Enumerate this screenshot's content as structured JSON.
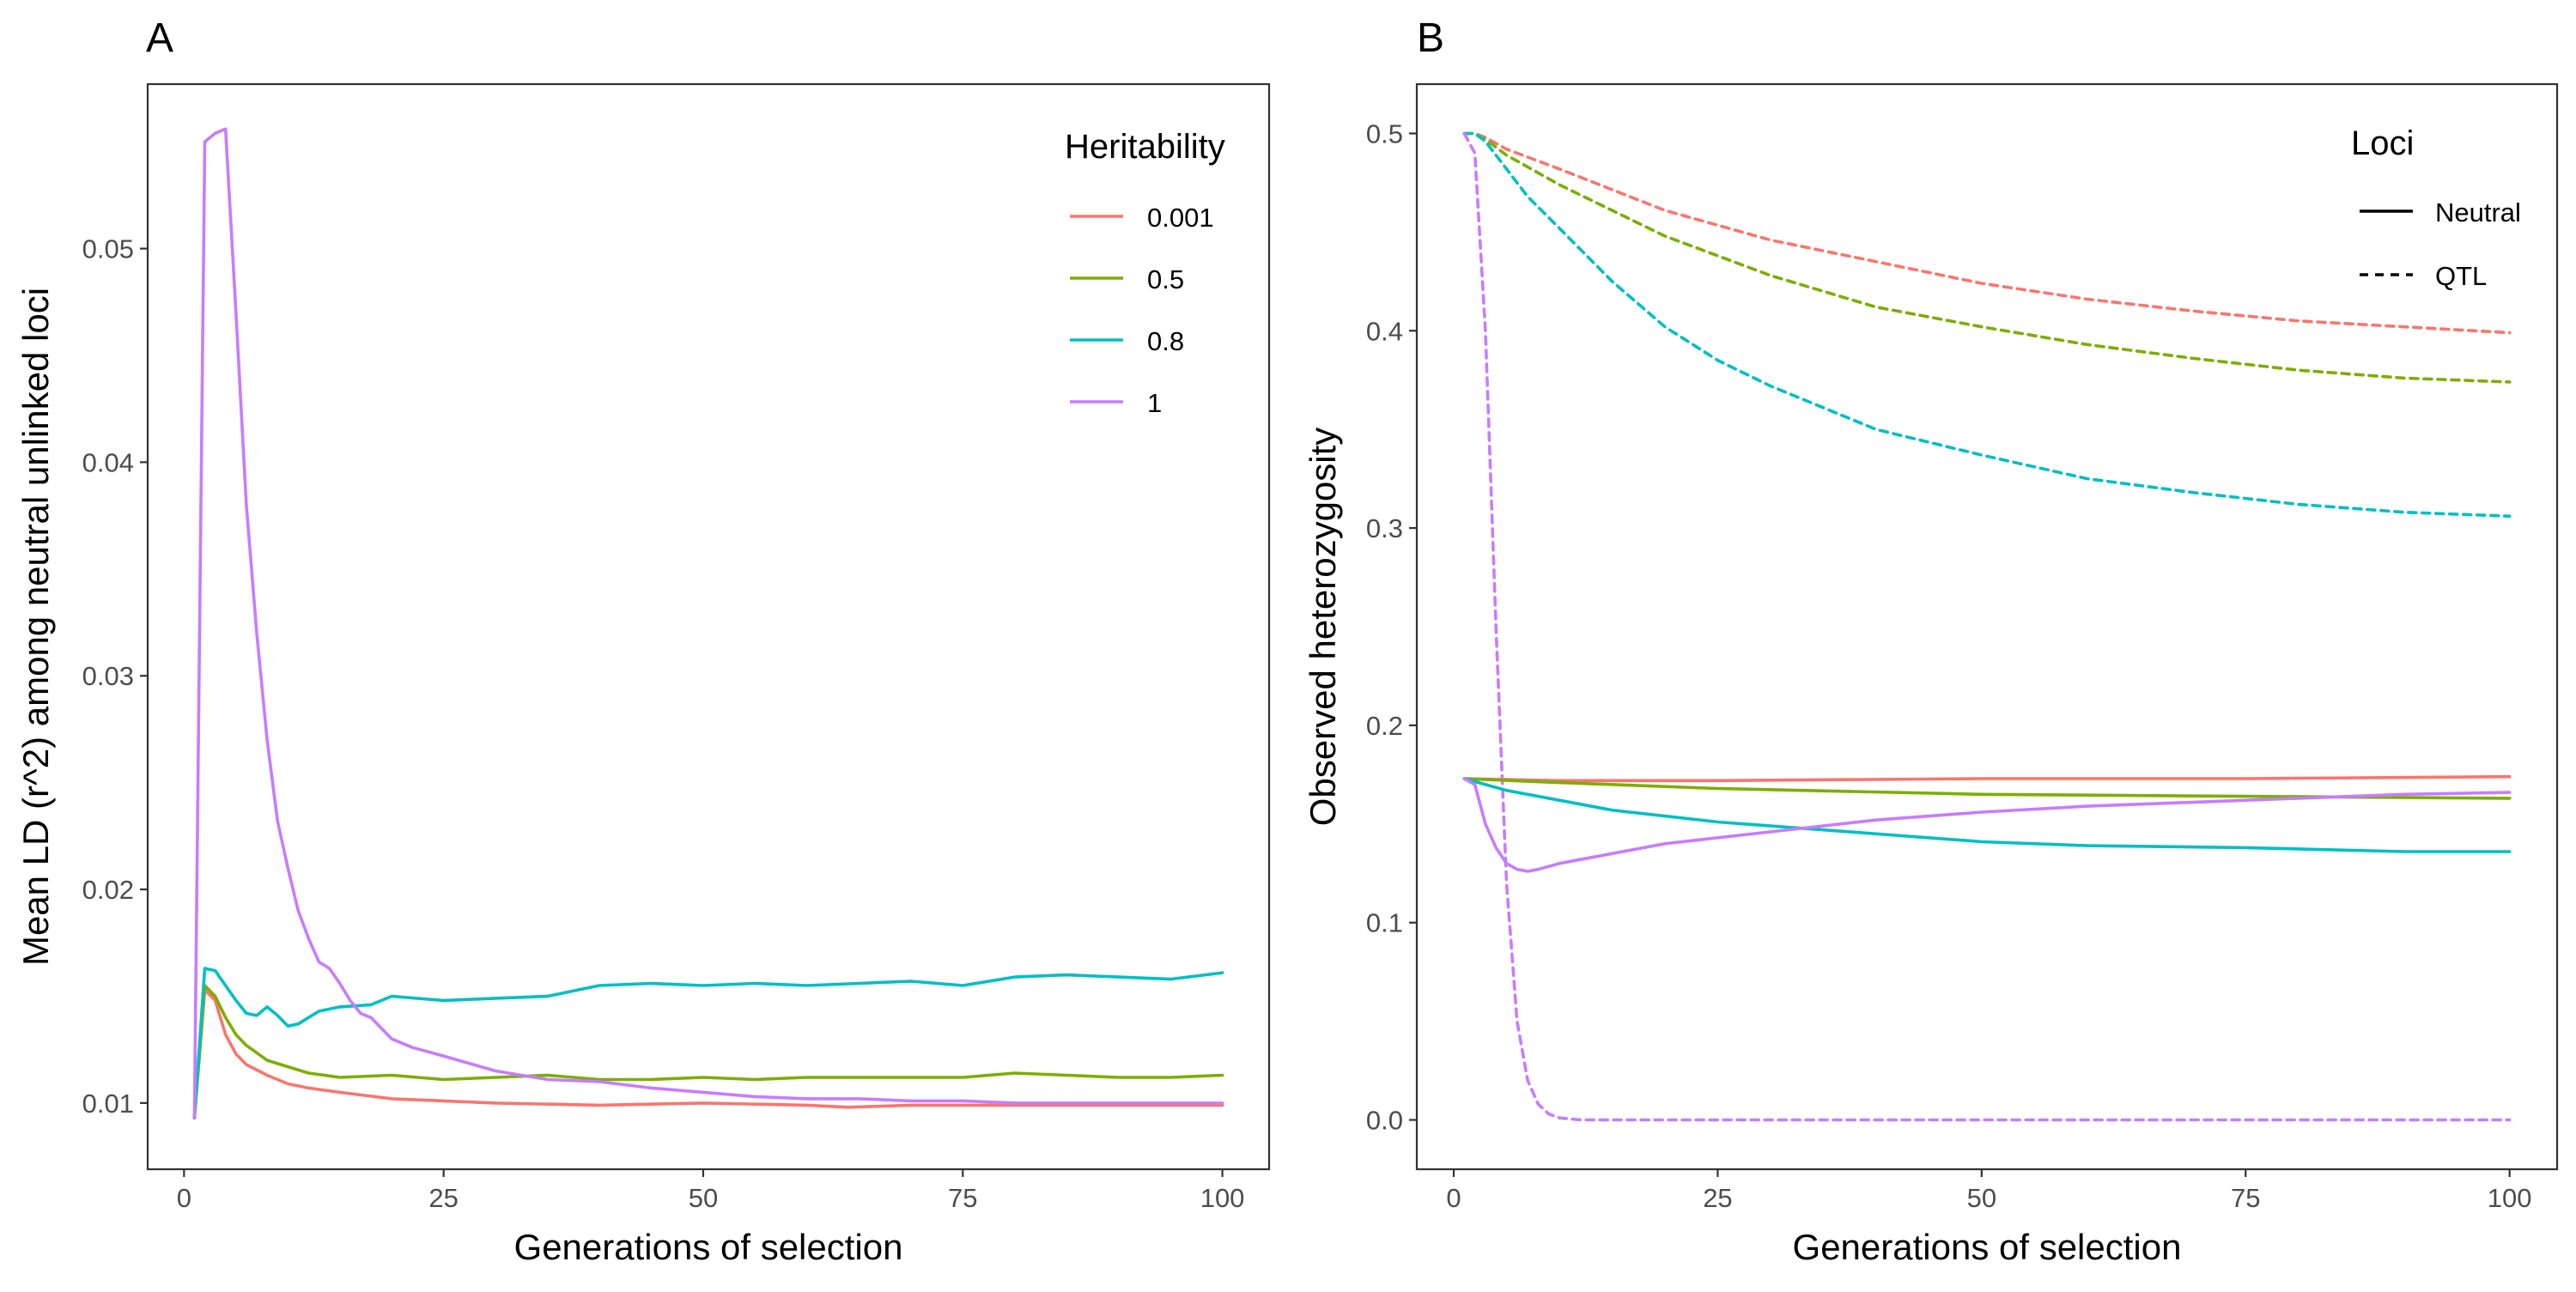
{
  "chart_data": [
    {
      "type": "line",
      "panel_label": "A",
      "xlabel": "Generations of selection",
      "ylabel": "Mean LD (r^2) among neutral unlinked loci",
      "xlim": [
        -3.5,
        104.5
      ],
      "ylim": [
        0.0069,
        0.0577
      ],
      "xticks": [
        0,
        25,
        50,
        75,
        100
      ],
      "yticks": [
        0.01,
        0.02,
        0.03,
        0.04,
        0.05
      ],
      "xtick_labels": [
        "0",
        "25",
        "50",
        "75",
        "100"
      ],
      "ytick_labels": [
        "0.01",
        "0.02",
        "0.03",
        "0.04",
        "0.05"
      ],
      "grid": false,
      "legend": {
        "title": "Heritability",
        "position": "top-right"
      },
      "series": [
        {
          "name": "0.001",
          "color": "#F8766D",
          "style": "solid",
          "x": [
            1,
            2,
            3,
            4,
            5,
            6,
            8,
            10,
            12,
            15,
            20,
            25,
            30,
            40,
            50,
            60,
            64,
            70,
            75,
            80,
            90,
            100
          ],
          "y": [
            0.0093,
            0.0153,
            0.0148,
            0.0132,
            0.0123,
            0.0118,
            0.0113,
            0.0109,
            0.0107,
            0.0105,
            0.0102,
            0.0101,
            0.01,
            0.0099,
            0.01,
            0.0099,
            0.0098,
            0.0099,
            0.0099,
            0.0099,
            0.0099,
            0.0099
          ]
        },
        {
          "name": "0.5",
          "color": "#7CAE00",
          "style": "solid",
          "x": [
            1,
            2,
            3,
            4,
            5,
            6,
            8,
            10,
            12,
            15,
            20,
            25,
            30,
            35,
            40,
            45,
            50,
            55,
            60,
            65,
            70,
            75,
            80,
            85,
            90,
            95,
            100
          ],
          "y": [
            0.0093,
            0.0155,
            0.015,
            0.014,
            0.0132,
            0.0127,
            0.012,
            0.0117,
            0.0114,
            0.0112,
            0.0113,
            0.0111,
            0.0112,
            0.0113,
            0.0111,
            0.0111,
            0.0112,
            0.0111,
            0.0112,
            0.0112,
            0.0112,
            0.0112,
            0.0114,
            0.0113,
            0.0112,
            0.0112,
            0.0113
          ]
        },
        {
          "name": "0.8",
          "color": "#00BFC4",
          "style": "solid",
          "x": [
            1,
            2,
            3,
            4,
            5,
            6,
            7,
            8,
            9,
            10,
            11,
            12,
            13,
            15,
            18,
            20,
            25,
            30,
            35,
            40,
            45,
            50,
            55,
            60,
            65,
            70,
            75,
            80,
            85,
            90,
            95,
            100
          ],
          "y": [
            0.0093,
            0.0163,
            0.0162,
            0.0155,
            0.0148,
            0.0142,
            0.0141,
            0.0145,
            0.0141,
            0.0136,
            0.0137,
            0.014,
            0.0143,
            0.0145,
            0.0146,
            0.015,
            0.0148,
            0.0149,
            0.015,
            0.0155,
            0.0156,
            0.0155,
            0.0156,
            0.0155,
            0.0156,
            0.0157,
            0.0155,
            0.0159,
            0.016,
            0.0159,
            0.0158,
            0.0161
          ]
        },
        {
          "name": "1",
          "color": "#C77CFF",
          "style": "solid",
          "x": [
            1,
            2,
            3,
            4,
            5,
            6,
            7,
            8,
            9,
            10,
            11,
            12,
            13,
            14,
            15,
            16,
            17,
            18,
            20,
            22,
            25,
            30,
            35,
            40,
            45,
            50,
            55,
            60,
            65,
            70,
            75,
            80,
            90,
            100
          ],
          "y": [
            0.0093,
            0.055,
            0.0554,
            0.0556,
            0.047,
            0.038,
            0.032,
            0.027,
            0.0232,
            0.021,
            0.019,
            0.0177,
            0.0166,
            0.0163,
            0.0156,
            0.0148,
            0.0142,
            0.014,
            0.013,
            0.0126,
            0.0122,
            0.0115,
            0.0111,
            0.011,
            0.0107,
            0.0105,
            0.0103,
            0.0102,
            0.0102,
            0.0101,
            0.0101,
            0.01,
            0.01,
            0.01
          ]
        }
      ]
    },
    {
      "type": "line",
      "panel_label": "B",
      "xlabel": "Generations of selection",
      "ylabel": "Observed heterozygosity",
      "xlim": [
        -3.5,
        104.5
      ],
      "ylim": [
        -0.025,
        0.525
      ],
      "xticks": [
        0,
        25,
        50,
        75,
        100
      ],
      "yticks": [
        0.0,
        0.1,
        0.2,
        0.3,
        0.4,
        0.5
      ],
      "xtick_labels": [
        "0",
        "25",
        "50",
        "75",
        "100"
      ],
      "ytick_labels": [
        "0.0",
        "0.1",
        "0.2",
        "0.3",
        "0.4",
        "0.5"
      ],
      "grid": false,
      "legend": {
        "title": "Loci",
        "position": "top-right",
        "entries": [
          {
            "label": "Neutral",
            "style": "solid"
          },
          {
            "label": "QTL",
            "style": "dashed"
          }
        ]
      },
      "series": [
        {
          "heritability": "0.001",
          "loci": "QTL",
          "color": "#F8766D",
          "style": "dashed",
          "x": [
            1,
            2,
            3,
            5,
            10,
            20,
            30,
            40,
            50,
            60,
            70,
            80,
            90,
            100
          ],
          "y": [
            0.5,
            0.5,
            0.498,
            0.492,
            0.482,
            0.461,
            0.446,
            0.435,
            0.424,
            0.416,
            0.41,
            0.405,
            0.402,
            0.399
          ]
        },
        {
          "heritability": "0.5",
          "loci": "QTL",
          "color": "#7CAE00",
          "style": "dashed",
          "x": [
            1,
            2,
            3,
            5,
            10,
            20,
            30,
            40,
            50,
            60,
            70,
            80,
            90,
            100
          ],
          "y": [
            0.5,
            0.5,
            0.497,
            0.489,
            0.474,
            0.448,
            0.428,
            0.412,
            0.402,
            0.393,
            0.386,
            0.38,
            0.376,
            0.374
          ]
        },
        {
          "heritability": "0.8",
          "loci": "QTL",
          "color": "#00BFC4",
          "style": "dashed",
          "x": [
            1,
            2,
            3,
            5,
            7,
            10,
            15,
            20,
            25,
            30,
            40,
            50,
            60,
            70,
            80,
            90,
            100
          ],
          "y": [
            0.5,
            0.5,
            0.496,
            0.482,
            0.468,
            0.452,
            0.425,
            0.402,
            0.385,
            0.372,
            0.35,
            0.337,
            0.325,
            0.318,
            0.312,
            0.308,
            0.306
          ]
        },
        {
          "heritability": "1",
          "loci": "QTL",
          "color": "#C77CFF",
          "style": "dashed",
          "x": [
            1,
            2,
            3,
            4,
            5,
            6,
            7,
            8,
            9,
            10,
            12,
            15,
            20,
            40,
            60,
            80,
            100
          ],
          "y": [
            0.5,
            0.49,
            0.4,
            0.25,
            0.12,
            0.05,
            0.02,
            0.008,
            0.003,
            0.001,
            0.0,
            0.0,
            0.0,
            0.0,
            0.0,
            0.0,
            0.0
          ]
        },
        {
          "heritability": "0.001",
          "loci": "Neutral",
          "color": "#F8766D",
          "style": "solid",
          "x": [
            1,
            10,
            25,
            50,
            75,
            100
          ],
          "y": [
            0.173,
            0.172,
            0.172,
            0.173,
            0.173,
            0.174
          ]
        },
        {
          "heritability": "0.5",
          "loci": "Neutral",
          "color": "#7CAE00",
          "style": "solid",
          "x": [
            1,
            10,
            25,
            50,
            75,
            100
          ],
          "y": [
            0.173,
            0.171,
            0.168,
            0.165,
            0.164,
            0.163
          ]
        },
        {
          "heritability": "0.8",
          "loci": "Neutral",
          "color": "#00BFC4",
          "style": "solid",
          "x": [
            1,
            3,
            5,
            10,
            15,
            20,
            25,
            30,
            40,
            50,
            60,
            75,
            90,
            100
          ],
          "y": [
            0.173,
            0.17,
            0.167,
            0.162,
            0.157,
            0.154,
            0.151,
            0.149,
            0.145,
            0.141,
            0.139,
            0.138,
            0.136,
            0.136
          ]
        },
        {
          "heritability": "1",
          "loci": "Neutral",
          "color": "#C77CFF",
          "style": "solid",
          "x": [
            1,
            2,
            3,
            4,
            5,
            6,
            7,
            8,
            10,
            15,
            20,
            30,
            40,
            50,
            60,
            75,
            90,
            100
          ],
          "y": [
            0.173,
            0.17,
            0.15,
            0.138,
            0.13,
            0.127,
            0.126,
            0.127,
            0.13,
            0.135,
            0.14,
            0.146,
            0.152,
            0.156,
            0.159,
            0.162,
            0.165,
            0.166
          ]
        }
      ]
    }
  ]
}
